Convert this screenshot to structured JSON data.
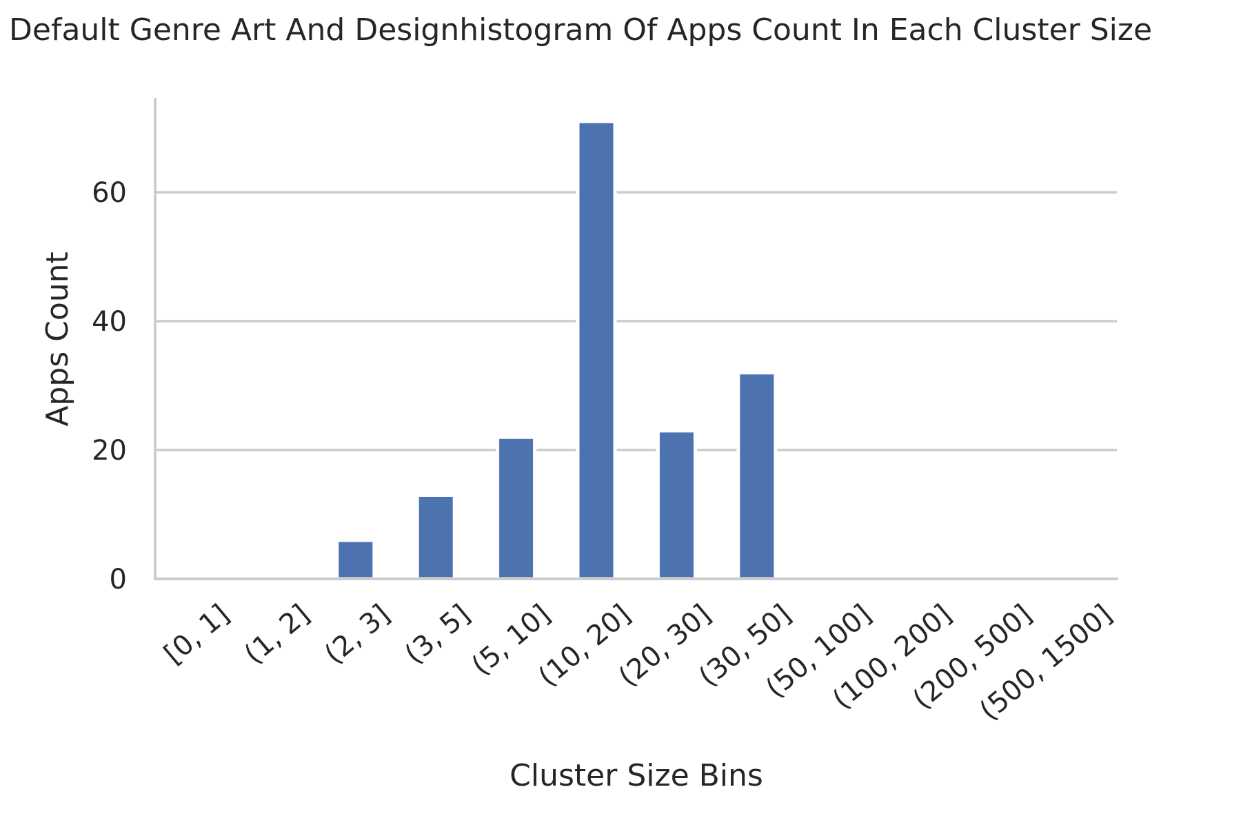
{
  "chart_data": {
    "type": "bar",
    "title": "Default Genre Art And Designhistogram Of Apps Count In Each Cluster Size",
    "xlabel": "Cluster Size Bins",
    "ylabel": "Apps Count",
    "categories": [
      "[0, 1]",
      "(1, 2]",
      "(2, 3]",
      "(3, 5]",
      "(5, 10]",
      "(10, 20]",
      "(20, 30]",
      "(30, 50]",
      "(50, 100]",
      "(100, 200]",
      "(200, 500]",
      "(500, 1500]"
    ],
    "values": [
      0,
      0,
      6,
      13,
      22,
      71,
      23,
      32,
      0,
      0,
      0,
      0
    ],
    "ylim": [
      0,
      75
    ],
    "yticks": [
      0,
      20,
      40,
      60
    ],
    "grid": "horizontal",
    "bar_color": "#4c72b0"
  }
}
